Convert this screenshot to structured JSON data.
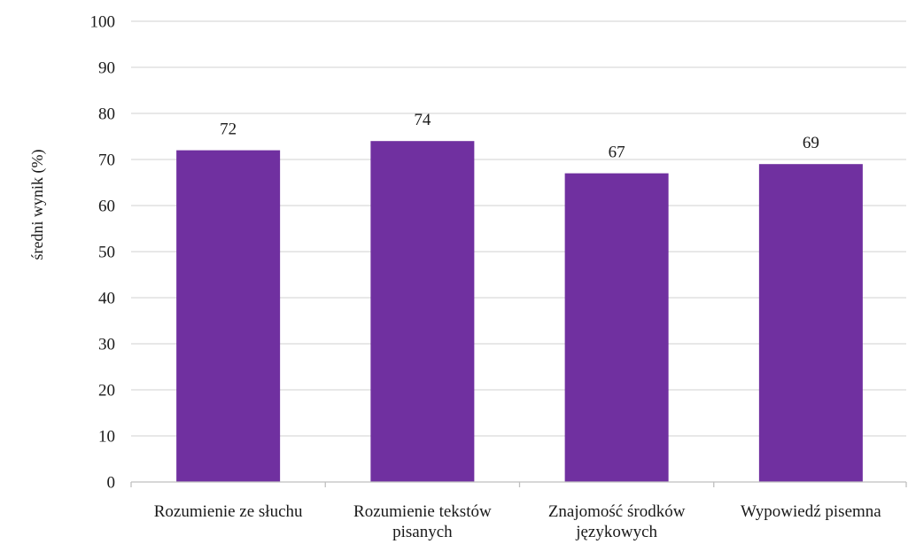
{
  "chart_data": {
    "type": "bar",
    "categories": [
      [
        "Rozumienie ze słuchu"
      ],
      [
        "Rozumienie tekstów",
        "pisanych"
      ],
      [
        "Znajomość środków",
        "językowych"
      ],
      [
        "Wypowiedź pisemna"
      ]
    ],
    "values": [
      72,
      74,
      67,
      69
    ],
    "data_labels": [
      "72",
      "74",
      "67",
      "69"
    ],
    "ylabel": "średni wynik (%)",
    "xlabel": "",
    "ylim": [
      0,
      100
    ],
    "yticks": [
      0,
      10,
      20,
      30,
      40,
      50,
      60,
      70,
      80,
      90,
      100
    ],
    "grid": true,
    "bar_color": "#7030a0"
  }
}
